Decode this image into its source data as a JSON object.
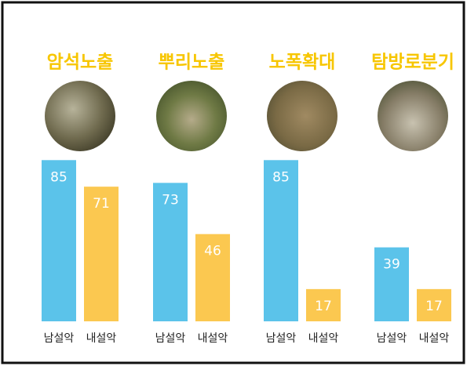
{
  "chart_data": {
    "type": "bar",
    "categories": [
      "암석노출",
      "뿌리노출",
      "노폭확대",
      "탐방로분기"
    ],
    "series": [
      {
        "name": "남설악",
        "color": "#5bc3ea",
        "values": [
          85,
          73,
          85,
          39
        ]
      },
      {
        "name": "내설악",
        "color": "#fbc850",
        "values": [
          71,
          46,
          17,
          17
        ]
      }
    ]
  }
}
